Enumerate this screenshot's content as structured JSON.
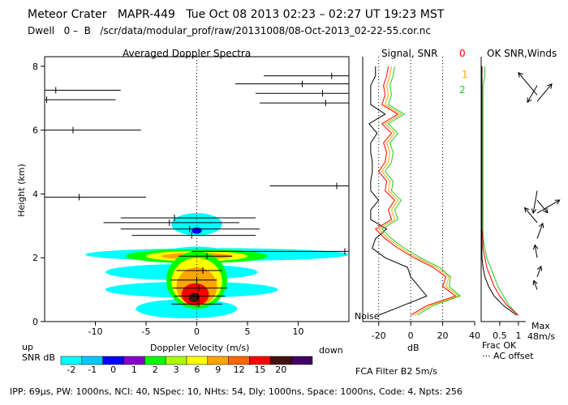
{
  "header": {
    "station": "Meteor Crater",
    "instrument": "MAPR-449",
    "datetime": "Tue Oct 08 2013 02:23 – 02:27 UT 19:23 MST",
    "dwell_label": "Dwell",
    "dwell_from": "0",
    "dwell_dash": "–",
    "dwell_beam": "B",
    "file_path": "/scr/data/modular_prof/raw/20131008/08-Oct-2013_02-22-55.cor.nc"
  },
  "footer": {
    "text": "IPP: 69μs, PW: 1000ns, NCI: 40, NSpec: 10, NHts: 54, Dly: 1000ns, Space: 1000ns, Code: 4, Npts: 256"
  },
  "panels": {
    "spectra_title": "Averaged Doppler Spectra",
    "signal_title": "Signal, SNR",
    "winds_title": "OK SNR,Winds",
    "noise_label": "Noise",
    "up_label": "up",
    "down_label": "down",
    "frac_ok_label": "Frac OK",
    "ac_offset_label": "··· AC offset",
    "max_label": "Max",
    "max_value": "48m/s",
    "fca_label": "FCA Filter B2  5m/s",
    "snr_legend_title": "SNR dB",
    "beam_labels": [
      "0",
      "1",
      "2"
    ]
  },
  "colors": {
    "beam_0": "#ff0000",
    "beam_1": "#ffa500",
    "beam_2": "#22cc22",
    "noise": "#000000",
    "snr_scale": [
      "#00ffff",
      "#00c8ff",
      "#0000ff",
      "#8800cc",
      "#00ff00",
      "#aaff00",
      "#ffff00",
      "#ffa500",
      "#ff6600",
      "#ff0000",
      "#441111",
      "#440066"
    ]
  },
  "chart_data": [
    {
      "type": "heatmap",
      "title": "Averaged Doppler Spectra",
      "xlabel": "Doppler Velocity (m/s)",
      "ylabel": "Height (km)",
      "xlim": [
        -15,
        15
      ],
      "ylim": [
        0,
        8.3
      ],
      "xticks": [
        -10,
        -5,
        0,
        5,
        10
      ],
      "yticks": [
        0,
        2,
        4,
        6,
        8
      ],
      "colorbar": {
        "label": "SNR dB",
        "ticks": [
          "-2",
          "-1",
          "0",
          "1",
          "2",
          "3",
          "6",
          "9",
          "12",
          "15",
          "20"
        ]
      },
      "peak_velocity_segments": [
        {
          "h": 7.25,
          "v0": -15,
          "v1": -7.5,
          "c": -13.9
        },
        {
          "h": 6.95,
          "v0": -15,
          "v1": -8,
          "c": -14.8
        },
        {
          "h": 6.0,
          "v0": -15,
          "v1": -5.5,
          "c": -12.2
        },
        {
          "h": 3.9,
          "v0": -15,
          "v1": -5,
          "c": -11.6
        },
        {
          "h": 7.45,
          "v0": 3.8,
          "v1": 15,
          "c": 10.4
        },
        {
          "h": 7.7,
          "v0": 6.6,
          "v1": 15,
          "c": 13.3
        },
        {
          "h": 7.15,
          "v0": 5.8,
          "v1": 15,
          "c": 12.4
        },
        {
          "h": 6.85,
          "v0": 6.2,
          "v1": 15,
          "c": 12.7
        },
        {
          "h": 4.25,
          "v0": 7.2,
          "v1": 15,
          "c": 13.8
        },
        {
          "h": 3.25,
          "v0": -7.5,
          "v1": 5.8,
          "c": -2.2
        },
        {
          "h": 3.1,
          "v0": -9.2,
          "v1": 4.2,
          "c": -2.7
        },
        {
          "h": 2.9,
          "v0": -7.5,
          "v1": 6.2,
          "c": -0.7
        },
        {
          "h": 2.7,
          "v0": -6.4,
          "v1": 5.8,
          "c": -0.5
        },
        {
          "h": 2.2,
          "v0": -0.5,
          "v1": 15,
          "c": 14.6
        },
        {
          "h": 2.05,
          "v0": -1.8,
          "v1": 3.5,
          "c": 1
        },
        {
          "h": 1.6,
          "v0": -2,
          "v1": 2.5,
          "c": 0.6
        },
        {
          "h": 1.3,
          "v0": -2.6,
          "v1": 2,
          "c": 0
        },
        {
          "h": 1.05,
          "v0": -2.4,
          "v1": 3,
          "c": 0.2
        },
        {
          "h": 0.8,
          "v0": -2.2,
          "v1": 2.8,
          "c": 0.1
        },
        {
          "h": 0.55,
          "v0": -2.5,
          "v1": 2.5,
          "c": 0.2
        }
      ]
    },
    {
      "type": "line",
      "title": "Signal, SNR",
      "xlabel": "dB",
      "xlim": [
        -30,
        40
      ],
      "ylim": [
        0,
        8.3
      ],
      "xticks": [
        -20,
        0,
        20,
        40
      ],
      "reference_lines": [
        -20,
        0,
        20
      ],
      "series": [
        {
          "name": "Noise",
          "color": "#000000",
          "h": [
            0.2,
            0.5,
            0.8,
            1.1,
            1.4,
            1.7,
            2.0,
            2.3,
            2.6,
            2.9,
            3.2,
            3.5,
            3.8,
            4.1,
            4.4,
            4.7,
            5.0,
            5.3,
            5.6,
            5.9,
            6.2,
            6.5,
            6.8,
            7.1,
            7.4,
            7.7,
            8.0
          ],
          "x": [
            -20,
            -5,
            10,
            5,
            0,
            -2,
            -16,
            -24,
            -22,
            -15,
            -25,
            -25,
            -20,
            -25,
            -25,
            -24,
            -24,
            -25,
            -25,
            -21,
            -26,
            -16,
            -25,
            -25,
            -25,
            -22,
            -22
          ]
        },
        {
          "name": "0",
          "color": "#ff0000",
          "h": [
            0.2,
            0.5,
            0.8,
            1.1,
            1.4,
            1.7,
            2.0,
            2.3,
            2.6,
            2.9,
            3.2,
            3.5,
            3.8,
            4.1,
            4.4,
            4.7,
            5.0,
            5.3,
            5.6,
            5.9,
            6.2,
            6.5,
            6.8,
            7.1,
            7.4,
            7.7,
            8.0
          ],
          "x": [
            0,
            10,
            28,
            20,
            22,
            14,
            2,
            -8,
            -16,
            -22,
            -12,
            -14,
            -10,
            -16,
            -15,
            -20,
            -16,
            -15,
            -17,
            -12,
            -18,
            -8,
            -18,
            -16,
            -17,
            -15,
            -14
          ]
        },
        {
          "name": "1",
          "color": "#ffa500",
          "h": [
            0.2,
            0.5,
            0.8,
            1.1,
            1.4,
            1.7,
            2.0,
            2.3,
            2.6,
            2.9,
            3.2,
            3.5,
            3.8,
            4.1,
            4.4,
            4.7,
            5.0,
            5.3,
            5.6,
            5.9,
            6.2,
            6.5,
            6.8,
            7.1,
            7.4,
            7.7,
            8.0
          ],
          "x": [
            2,
            12,
            30,
            22,
            24,
            16,
            4,
            -6,
            -14,
            -20,
            -10,
            -12,
            -8,
            -14,
            -13,
            -18,
            -14,
            -13,
            -15,
            -10,
            -16,
            -6,
            -16,
            -14,
            -15,
            -13,
            -12
          ]
        },
        {
          "name": "2",
          "color": "#22cc22",
          "h": [
            0.2,
            0.5,
            0.8,
            1.1,
            1.4,
            1.7,
            2.0,
            2.3,
            2.6,
            2.9,
            3.2,
            3.5,
            3.8,
            4.1,
            4.4,
            4.7,
            5.0,
            5.3,
            5.6,
            5.9,
            6.2,
            6.5,
            6.8,
            7.1,
            7.4,
            7.7,
            8.0
          ],
          "x": [
            4,
            14,
            31,
            24,
            25,
            18,
            6,
            -4,
            -12,
            -18,
            -8,
            -10,
            -6,
            -12,
            -11,
            -16,
            -12,
            -11,
            -13,
            -8,
            -14,
            -4,
            -14,
            -12,
            -13,
            -11,
            -10
          ]
        }
      ]
    },
    {
      "type": "line",
      "title": "OK SNR,Winds",
      "xlabel": "Frac OK",
      "xlim": [
        0,
        1.2
      ],
      "ylim": [
        0,
        8.3
      ],
      "xticks": [
        0.5,
        1
      ],
      "series": [
        {
          "name": "green",
          "color": "#22cc22",
          "h": [
            0.2,
            0.5,
            0.8,
            1.1,
            1.4,
            1.7,
            2.0,
            2.3,
            2.6,
            2.9,
            3.2,
            3.5,
            3.8,
            4.1,
            4.4,
            4.7,
            5.0,
            5.3,
            5.6,
            5.9,
            6.2,
            6.5,
            6.8,
            7.1,
            7.4,
            7.7,
            8.0
          ],
          "x": [
            1.0,
            0.75,
            0.6,
            0.45,
            0.35,
            0.25,
            0.15,
            0.1,
            0.05,
            0.05,
            0.05,
            0.05,
            0.05,
            0.05,
            0.05,
            0.05,
            0.05,
            0.05,
            0.05,
            0.05,
            0.05,
            0.05,
            0.05,
            0.05,
            0.05,
            0.1,
            0.1
          ]
        },
        {
          "name": "red",
          "color": "#ff0000",
          "h": [
            0.2,
            0.5,
            0.8,
            1.1,
            1.4,
            1.7,
            2.0,
            2.3,
            2.6,
            2.9,
            3.2,
            3.5,
            3.8,
            4.1,
            4.4,
            4.7,
            5.0,
            5.3,
            5.6,
            5.9,
            6.2,
            6.5,
            6.8,
            7.1,
            7.4,
            7.7,
            8.0
          ],
          "x": [
            1.0,
            0.7,
            0.5,
            0.35,
            0.25,
            0.15,
            0.1,
            0.05,
            0.05,
            0.02,
            0.02,
            0.02,
            0.02,
            0.02,
            0.02,
            0.02,
            0.02,
            0.02,
            0.02,
            0.02,
            0.02,
            0.02,
            0.02,
            0.02,
            0.02,
            0.02,
            0.02
          ]
        },
        {
          "name": "black",
          "color": "#000000",
          "h": [
            0.2,
            0.5,
            0.8,
            1.1,
            1.4,
            1.7,
            2.0,
            2.3,
            2.6,
            2.9,
            3.2,
            3.5,
            3.8,
            4.1,
            4.4,
            4.7,
            5.0,
            5.3,
            5.6,
            5.9,
            6.2,
            6.5,
            6.8,
            7.1,
            7.4,
            7.7,
            8.0
          ],
          "x": [
            0.95,
            0.6,
            0.35,
            0.2,
            0.1,
            0.05,
            0.02,
            0.02,
            0.02,
            0.02,
            0.02,
            0.02,
            0.02,
            0.02,
            0.02,
            0.02,
            0.02,
            0.02,
            0.02,
            0.02,
            0.02,
            0.02,
            0.02,
            0.02,
            0.02,
            0.02,
            0.02
          ]
        }
      ],
      "wind_barbs": [
        {
          "h": 7.4,
          "angle": 210,
          "len": 0.6
        },
        {
          "h": 7.1,
          "angle": 320,
          "len": 0.9
        },
        {
          "h": 6.9,
          "angle": 40,
          "len": 0.7
        },
        {
          "h": 4.1,
          "angle": 190,
          "len": 0.7
        },
        {
          "h": 3.8,
          "angle": 140,
          "len": 0.5
        },
        {
          "h": 3.4,
          "angle": 60,
          "len": 0.8
        },
        {
          "h": 3.1,
          "angle": 320,
          "len": 0.6
        },
        {
          "h": 2.6,
          "angle": 20,
          "len": 0.5
        },
        {
          "h": 2.0,
          "angle": 350,
          "len": 0.4
        },
        {
          "h": 1.4,
          "angle": 20,
          "len": 0.35
        },
        {
          "h": 1.0,
          "angle": 340,
          "len": 0.3
        }
      ]
    }
  ]
}
